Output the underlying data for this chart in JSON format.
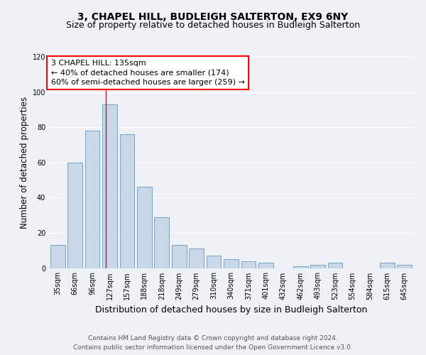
{
  "title": "3, CHAPEL HILL, BUDLEIGH SALTERTON, EX9 6NY",
  "subtitle": "Size of property relative to detached houses in Budleigh Salterton",
  "xlabel": "Distribution of detached houses by size in Budleigh Salterton",
  "ylabel": "Number of detached properties",
  "bar_labels": [
    "35sqm",
    "66sqm",
    "96sqm",
    "127sqm",
    "157sqm",
    "188sqm",
    "218sqm",
    "249sqm",
    "279sqm",
    "310sqm",
    "340sqm",
    "371sqm",
    "401sqm",
    "432sqm",
    "462sqm",
    "493sqm",
    "523sqm",
    "554sqm",
    "584sqm",
    "615sqm",
    "645sqm"
  ],
  "bar_values": [
    13,
    60,
    78,
    93,
    76,
    46,
    29,
    13,
    11,
    7,
    5,
    4,
    3,
    0,
    1,
    2,
    3,
    0,
    0,
    3,
    2
  ],
  "bar_color": "#c8d8e8",
  "bar_edge_color": "#6699bb",
  "ylim": [
    0,
    120
  ],
  "yticks": [
    0,
    20,
    40,
    60,
    80,
    100,
    120
  ],
  "marker_label": "3 CHAPEL HILL: 135sqm",
  "annotation_line1": "← 40% of detached houses are smaller (174)",
  "annotation_line2": "60% of semi-detached houses are larger (259) →",
  "footer_line1": "Contains HM Land Registry data © Crown copyright and database right 2024.",
  "footer_line2": "Contains public sector information licensed under the Open Government Licence v3.0.",
  "bg_color": "#eef2f6",
  "title_fontsize": 10,
  "subtitle_fontsize": 9,
  "xlabel_fontsize": 9,
  "ylabel_fontsize": 8.5,
  "tick_fontsize": 7,
  "footer_fontsize": 6.5,
  "annotation_fontsize": 8,
  "annotation_box_edge_color": "red",
  "marker_line_color": "red",
  "grid_color": "#ffffff"
}
